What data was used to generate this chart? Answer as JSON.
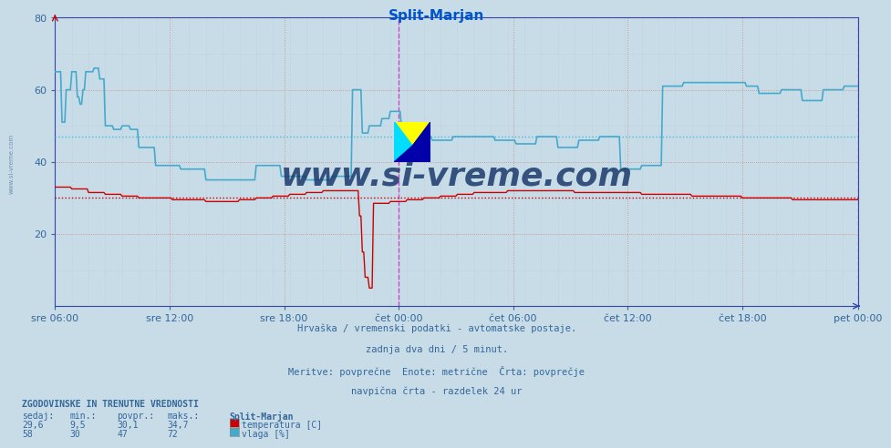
{
  "title": "Split-Marjan",
  "title_color": "#0055cc",
  "bg_color": "#c8dce8",
  "plot_bg_color": "#c8dce8",
  "grid_color_v": "#c8a0a0",
  "grid_color_h": "#c8a0a0",
  "grid_color_minor": "#b8ccd8",
  "axis_color": "#3344aa",
  "text_color": "#336699",
  "temp_color": "#cc0000",
  "vlaga_color": "#44aacc",
  "temp_avg": 30.1,
  "vlaga_avg": 47,
  "temp_avg_color": "#cc0000",
  "vlaga_avg_color": "#44bbdd",
  "ylim": [
    0,
    80
  ],
  "yticks": [
    20,
    40,
    60,
    80
  ],
  "xtick_labels": [
    "sre 06:00",
    "sre 12:00",
    "sre 18:00",
    "čet 00:00",
    "čet 06:00",
    "čet 12:00",
    "čet 18:00",
    "pet 00:00"
  ],
  "footer_lines": [
    "Hrvaška / vremenski podatki - avtomatske postaje.",
    "zadnja dva dni / 5 minut.",
    "Meritve: povprečne  Enote: metrične  Črta: povprečje",
    "navpična črta - razdelek 24 ur"
  ],
  "legend_title": "Split-Marjan",
  "legend_temp_label": "temperatura [C]",
  "legend_vlaga_label": "vlaga [%]",
  "stats_header": "ZGODOVINSKE IN TRENUTNE VREDNOSTI",
  "stats_cols": [
    "sedaj:",
    "min.:",
    "povpr.:",
    "maks.:"
  ],
  "stats_temp": [
    "29,6",
    "9,5",
    "30,1",
    "34,7"
  ],
  "stats_vlaga": [
    "58",
    "30",
    "47",
    "72"
  ],
  "watermark": "www.si-vreme.com",
  "watermark_color": "#1a3a6a",
  "logo_color1": "#ffff00",
  "logo_color2": "#00ddff",
  "logo_color3": "#0000aa",
  "midnight_color": "#cc44cc",
  "n_points": 576
}
